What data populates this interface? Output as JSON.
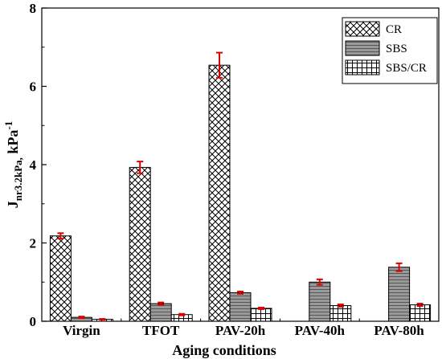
{
  "chart_data": {
    "type": "bar",
    "title": "",
    "xlabel": "Aging conditions",
    "ylabel": {
      "base": "J",
      "subscript": "nr3.2kPa,",
      "unit": "kPa",
      "superscript": "-1"
    },
    "ylim": [
      0,
      8
    ],
    "yticks": [
      "0",
      "2",
      "4",
      "6",
      "8"
    ],
    "grid": false,
    "legend_position": "top-right",
    "categories": [
      "Virgin",
      "TFOT",
      "PAV-20h",
      "PAV-40h",
      "PAV-80h"
    ],
    "series": [
      {
        "name": "CR",
        "pattern": "crosshatch",
        "fill": "#ffffff",
        "values": [
          2.18,
          3.93,
          6.54,
          null,
          null
        ],
        "errors": [
          0.07,
          0.15,
          0.32,
          null,
          null
        ]
      },
      {
        "name": "SBS",
        "pattern": "horizontal-lines",
        "fill": "#9a9a9a",
        "values": [
          0.1,
          0.45,
          0.73,
          1.0,
          1.38
        ],
        "errors": [
          0.02,
          0.03,
          0.03,
          0.07,
          0.1
        ]
      },
      {
        "name": "SBS/CR",
        "pattern": "grid",
        "fill": "#ffffff",
        "values": [
          0.05,
          0.17,
          0.33,
          0.4,
          0.42
        ],
        "errors": [
          0.01,
          0.02,
          0.02,
          0.03,
          0.03
        ]
      }
    ],
    "error_bar_color": "#e00000"
  }
}
